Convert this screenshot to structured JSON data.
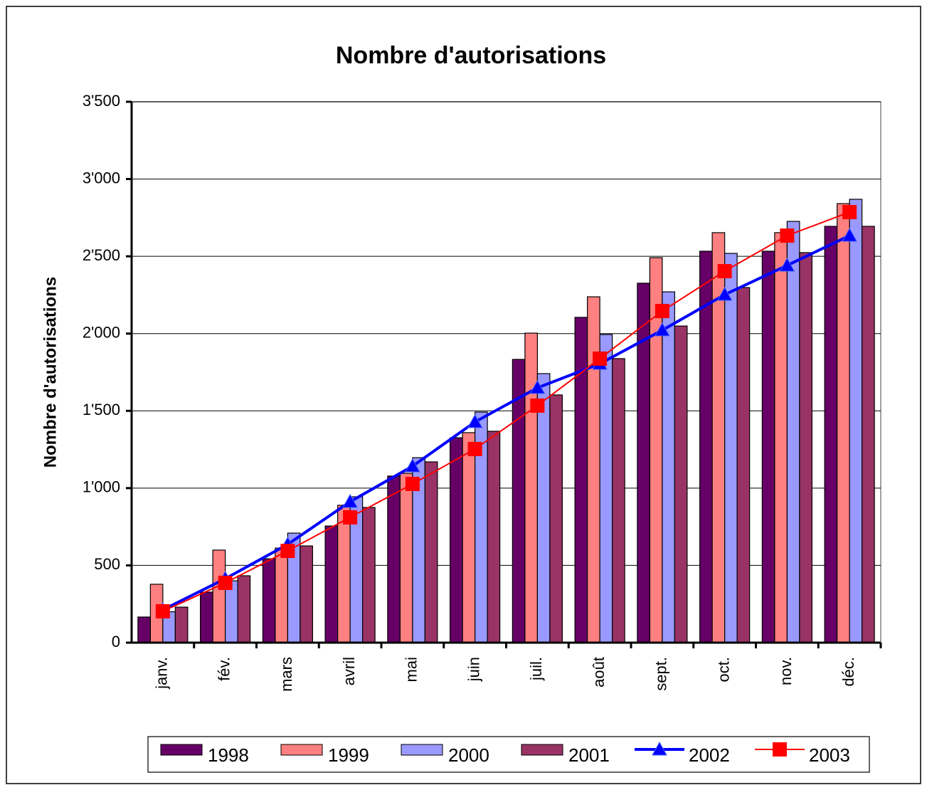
{
  "chart_data": {
    "type": "bar-line",
    "title": "Nombre d'autorisations",
    "ylabel": "Nombre d'autorisations",
    "categories": [
      "janv.",
      "fév.",
      "mars",
      "avril",
      "mai",
      "juin",
      "juil.",
      "août",
      "sept.",
      "oct.",
      "nov.",
      "déc."
    ],
    "series": [
      {
        "name": "1998",
        "type": "bar",
        "color": "#660066",
        "values": [
          166,
          327,
          543,
          755,
          1078,
          1326,
          1833,
          2105,
          2326,
          2533,
          2533,
          2694
        ]
      },
      {
        "name": "1999",
        "type": "bar",
        "color": "#ff8080",
        "values": [
          378,
          599,
          612,
          889,
          1096,
          1359,
          2003,
          2238,
          2491,
          2653,
          2653,
          2841
        ]
      },
      {
        "name": "2000",
        "type": "bar",
        "color": "#9999ff",
        "values": [
          200,
          400,
          709,
          944,
          1197,
          1492,
          1741,
          1994,
          2270,
          2519,
          2726,
          2869
        ]
      },
      {
        "name": "2001",
        "type": "bar",
        "color": "#993366",
        "values": [
          230,
          433,
          626,
          875,
          1170,
          1368,
          1603,
          1838,
          2049,
          2298,
          2524,
          2694
        ]
      },
      {
        "name": "2002",
        "type": "line",
        "marker": "triangle",
        "color": "#0000ff",
        "values": [
          212,
          414,
          636,
          912,
          1142,
          1428,
          1649,
          1805,
          2022,
          2252,
          2441,
          2634
        ]
      },
      {
        "name": "2003",
        "type": "line",
        "marker": "square",
        "color": "#ff0000",
        "values": [
          203,
          387,
          594,
          811,
          1027,
          1253,
          1534,
          1838,
          2146,
          2404,
          2634,
          2786
        ]
      }
    ],
    "ylim": [
      0,
      3500
    ],
    "yticks": [
      0,
      500,
      {
        "value": 1000,
        "label": "1'000"
      },
      {
        "value": 1500,
        "label": "1'500"
      },
      {
        "value": 2000,
        "label": "2'000"
      },
      {
        "value": 2500,
        "label": "2'500"
      },
      {
        "value": 3000,
        "label": "3'000"
      },
      {
        "value": 3500,
        "label": "3'500"
      }
    ],
    "grid": true,
    "legend": "bottom"
  }
}
